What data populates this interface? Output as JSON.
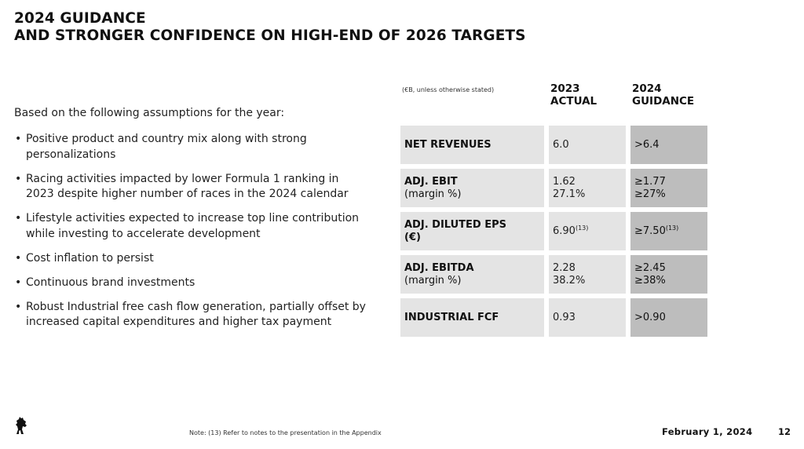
{
  "title": {
    "line1": "2024 GUIDANCE",
    "line2": "AND STRONGER CONFIDENCE ON HIGH-END OF 2026 TARGETS"
  },
  "assumptions": {
    "intro": "Based on the following assumptions for the year:",
    "bullets": [
      "Positive product and country mix along with strong personalizations",
      "Racing activities impacted by lower Formula 1 ranking in 2023 despite higher number of races in the 2024 calendar",
      "Lifestyle activities expected to increase top line contribution while investing to accelerate development",
      "Cost inflation to persist",
      "Continuous brand investments",
      "Robust Industrial free cash flow generation, partially offset by increased capital expenditures and higher tax payment"
    ]
  },
  "table": {
    "unit_note": "(€B, unless otherwise stated)",
    "col_actual": {
      "line1": "2023",
      "line2": "ACTUAL"
    },
    "col_guidance": {
      "line1": "2024",
      "line2": "GUIDANCE"
    },
    "rows": [
      {
        "label1": "NET REVENUES",
        "actual1": "6.0",
        "guide1": ">6.4"
      },
      {
        "label1": "ADJ. EBIT",
        "label2": "(margin %)",
        "actual1": "1.62",
        "actual2": "27.1%",
        "guide1": "≥1.77",
        "guide2": "≥27%"
      },
      {
        "label1": "ADJ. DILUTED EPS",
        "label2": "(€)",
        "actual1": "6.90",
        "actual_sup": "(13)",
        "guide1": "≥7.50",
        "guide_sup": "(13)"
      },
      {
        "label1": "ADJ. EBITDA",
        "label2": "(margin %)",
        "actual1": "2.28",
        "actual2": "38.2%",
        "guide1": "≥2.45",
        "guide2": "≥38%"
      },
      {
        "label1": "INDUSTRIAL FCF",
        "actual1": "0.93",
        "guide1": ">0.90"
      }
    ]
  },
  "footer": {
    "note": "Note: (13) Refer to notes to the presentation in the Appendix",
    "date": "February 1, 2024",
    "page": "12",
    "logo_icon": "prancing-horse-logo-icon"
  },
  "colors": {
    "row_bg": "#e4e4e4",
    "guidance_bg": "#bdbdbd",
    "text": "#111111"
  }
}
